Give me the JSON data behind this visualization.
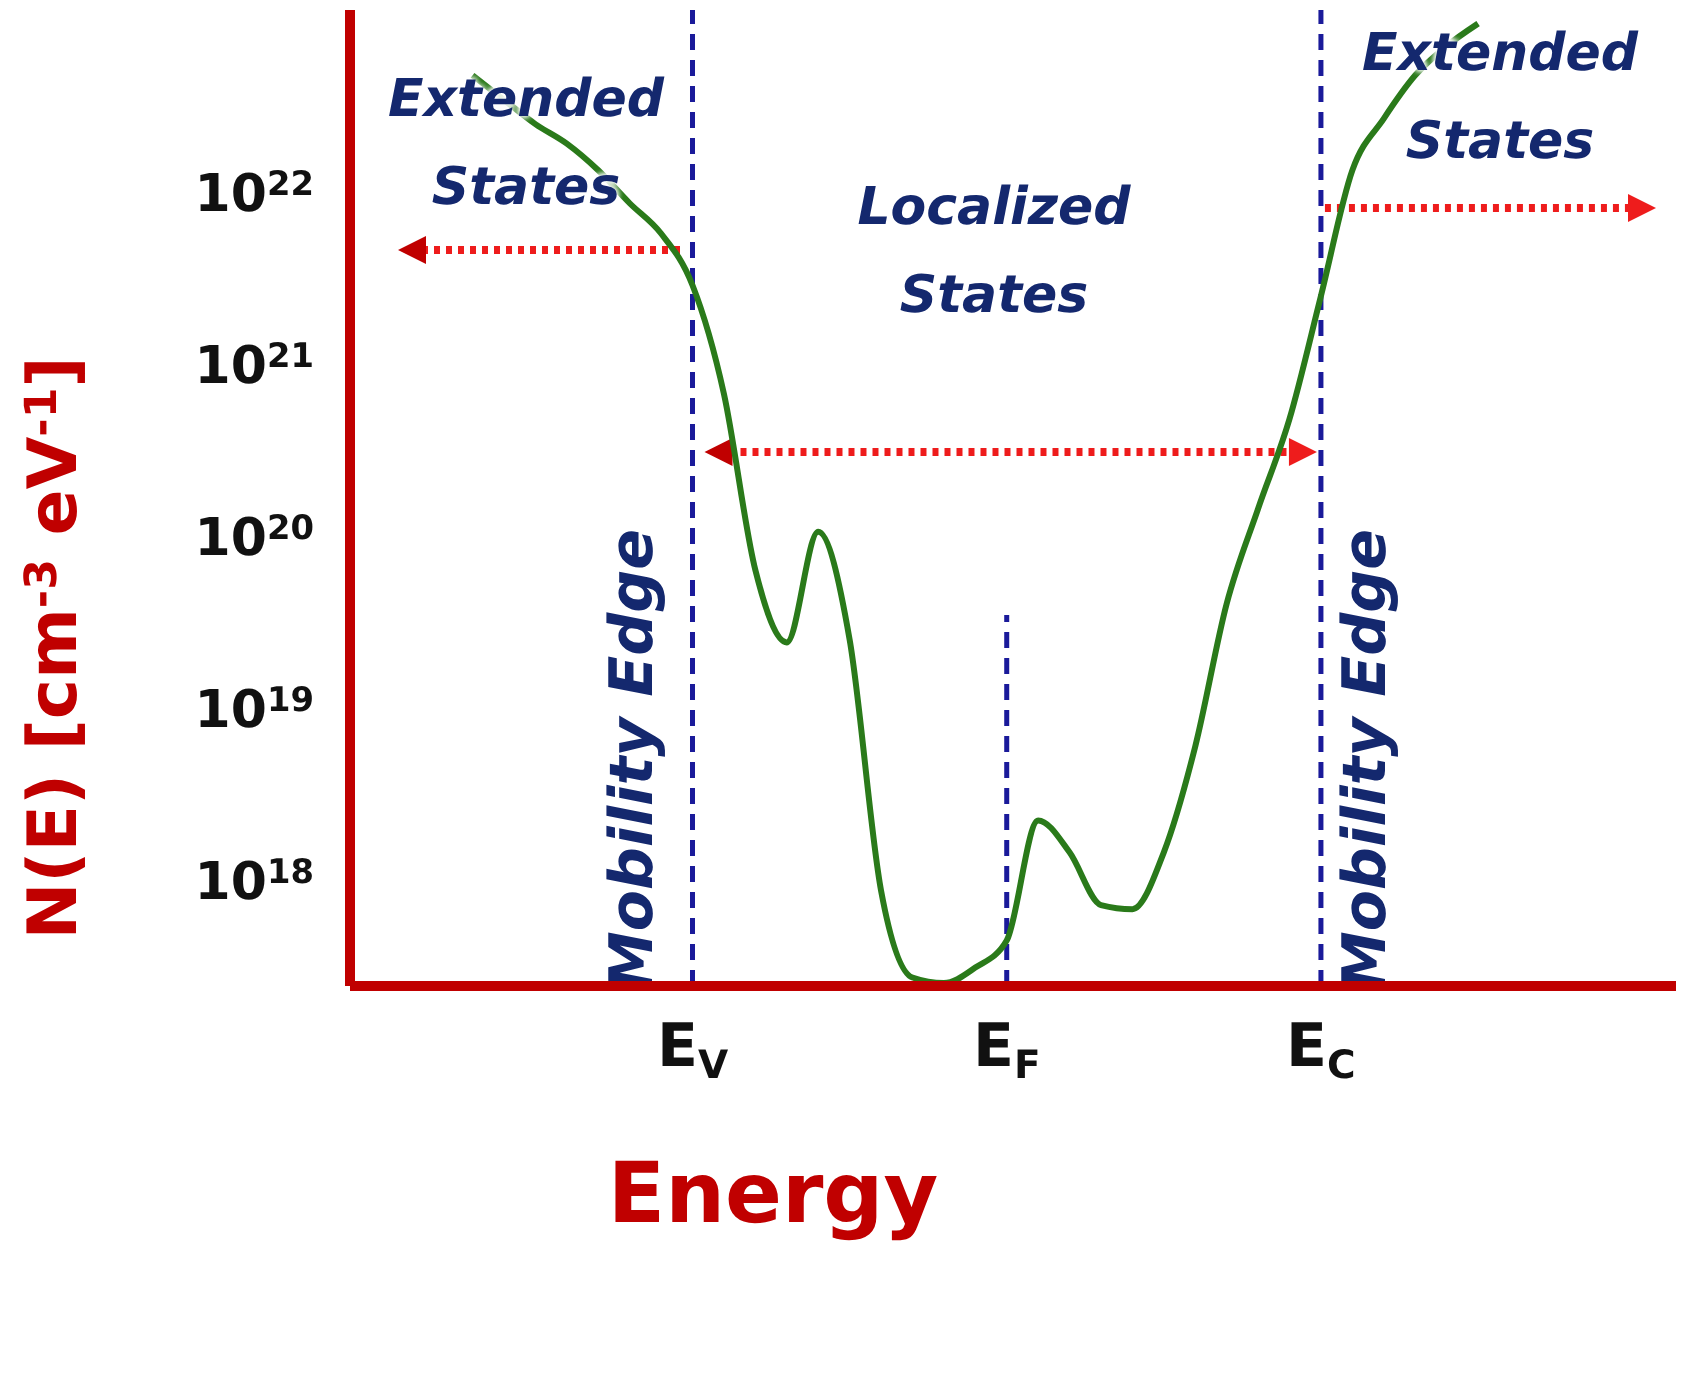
{
  "chart_data": {
    "type": "line",
    "xlabel": "Energy",
    "ylabel": "N(E) [cm$^{-3}$ eV$^{-1}$]",
    "categories": [
      null,
      null,
      null,
      null,
      null,
      null,
      null,
      "E$_{V}$",
      null,
      null,
      null,
      null,
      null,
      null,
      null,
      null,
      null,
      "E$_{F}$",
      null,
      null,
      null,
      null,
      null,
      null,
      null,
      null,
      null,
      "E$_{C}$",
      null,
      null,
      null,
      null,
      null
    ],
    "series": [
      {
        "color": "#2a7a1a",
        "values": [
          5e+22,
          3.6e+22,
          2.6e+22,
          2e+22,
          1.4e+22,
          9e+21,
          6e+21,
          3e+21,
          7e+20,
          6.6e+19,
          2.5e+19,
          1.1e+20,
          2.6e+19,
          9e+17,
          2.8e+17,
          2.6e+17,
          3.2e+17,
          4.6e+17,
          2.3e+18,
          1.5e+18,
          7.4e+17,
          7e+17,
          1.5e+18,
          6.2e+18,
          4.2e+19,
          1.5e+20,
          5e+20,
          2.6e+21,
          1.4e+22,
          2.8e+22,
          5e+22,
          7.4e+22,
          1e+23
        ]
      }
    ],
    "log": "y",
    "ylim": [
      2.5e+17,
      1.2e+23
    ],
    "yticks": [
      {
        "value": 1e+18,
        "label": "10$^{18}$"
      },
      {
        "value": 1e+19,
        "label": "10$^{19}$"
      },
      {
        "value": 1e+20,
        "label": "10$^{20}$"
      },
      {
        "value": 1e+21,
        "label": "10$^{21}$"
      },
      {
        "value": 1e+22,
        "label": "10$^{22}$"
      }
    ],
    "ref_lines": [
      {
        "axis": "x",
        "value": "E$_{V}$",
        "label": "Mobility Edge",
        "color": "#1a1a9a",
        "line_style": "dashed"
      },
      {
        "axis": "x",
        "value": "E$_{F}$",
        "color": "#1a1a9a",
        "line_style": "dashed"
      },
      {
        "axis": "x",
        "value": "E$_{C}$",
        "label": "Mobility Edge",
        "color": "#1a1a9a",
        "line_style": "dashed"
      }
    ],
    "annotations": [
      "Extended States",
      "Localized States",
      "Extended States"
    ],
    "marker": "none",
    "line_style": "solid"
  }
}
